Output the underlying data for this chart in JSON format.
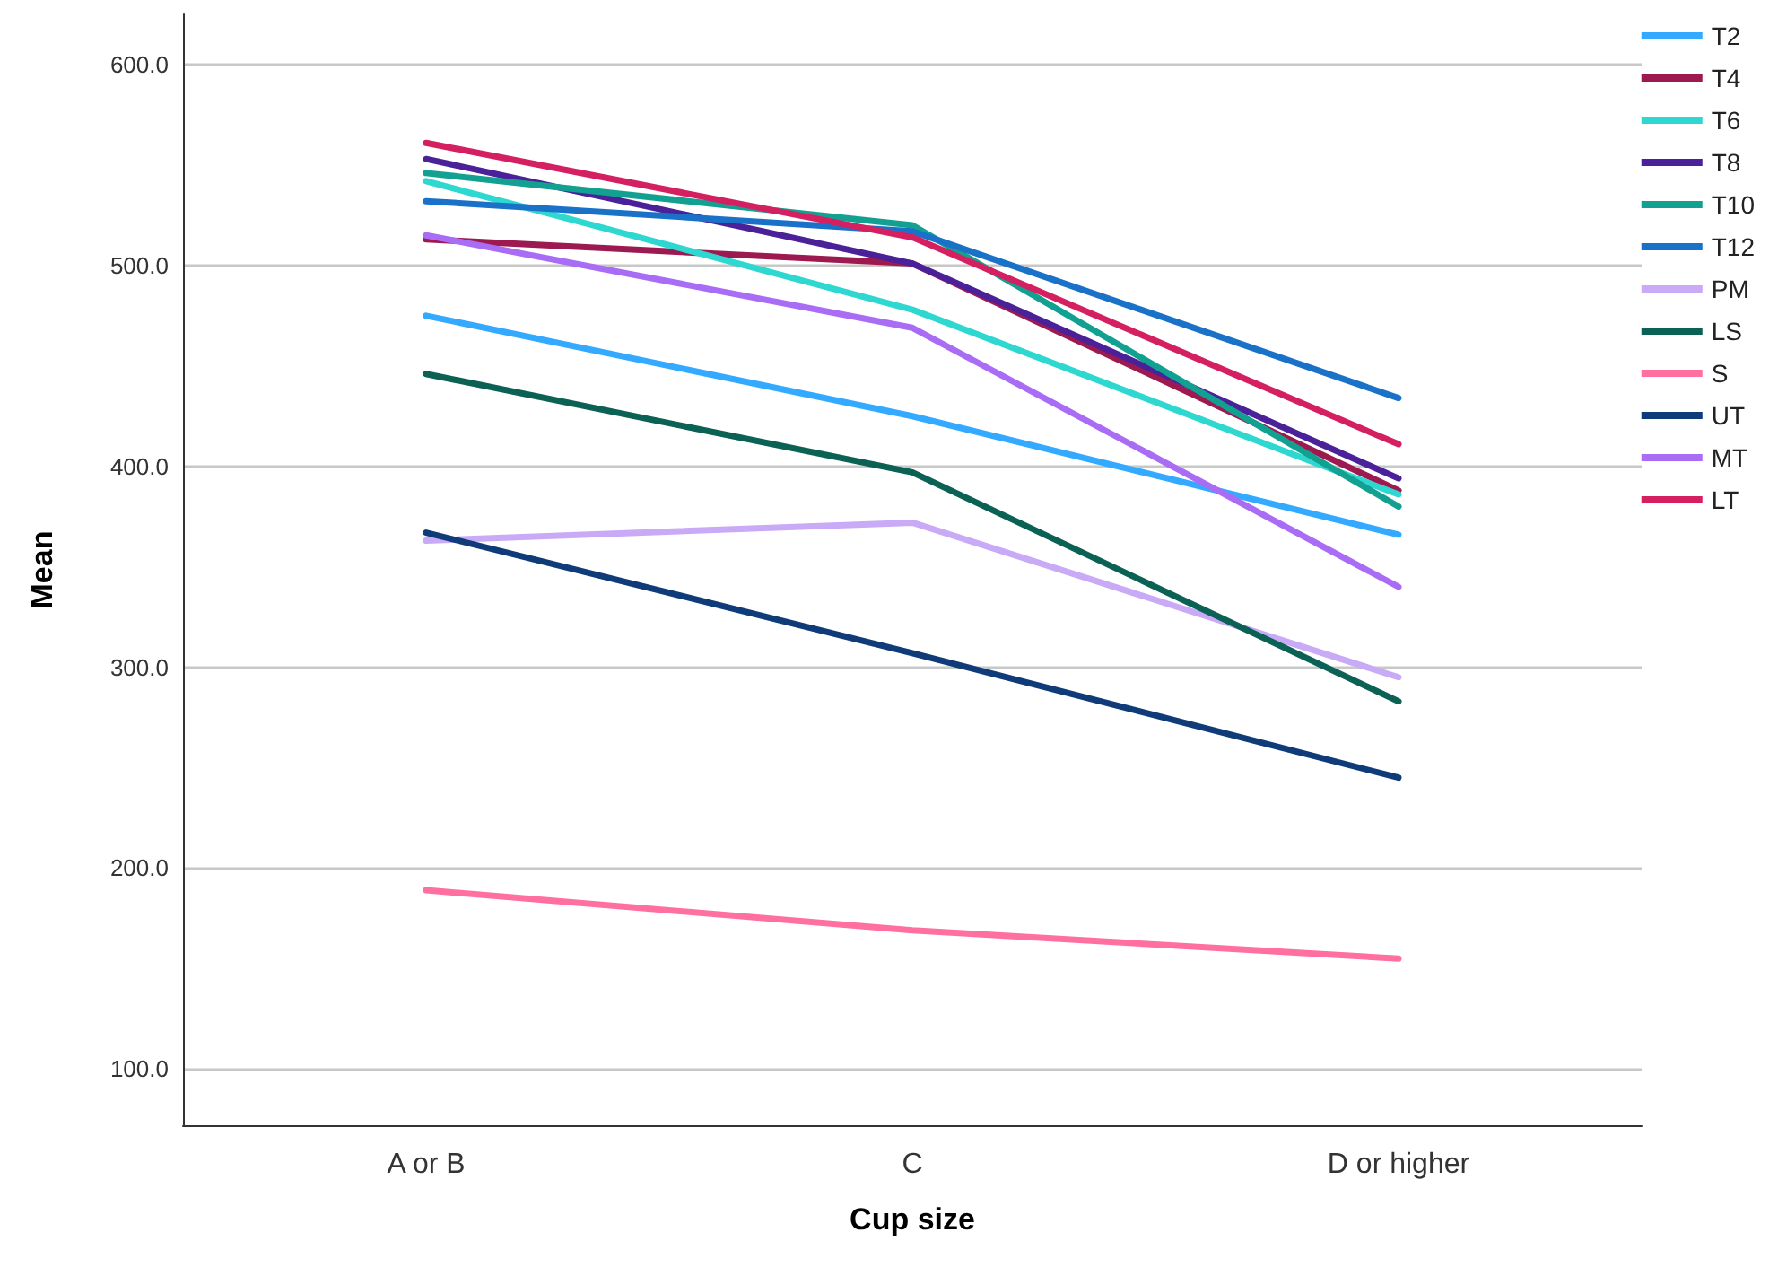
{
  "chart_data": {
    "type": "line",
    "xlabel": "Cup size",
    "ylabel": "Mean",
    "categories": [
      "A or B",
      "C",
      "D or higher"
    ],
    "series": [
      {
        "name": "T2",
        "color": "#33aaff",
        "values": [
          475,
          425,
          366
        ]
      },
      {
        "name": "T4",
        "color": "#9c1a4f",
        "values": [
          513,
          501,
          388
        ]
      },
      {
        "name": "T6",
        "color": "#2ed8d0",
        "values": [
          542,
          478,
          386
        ]
      },
      {
        "name": "T8",
        "color": "#4b2199",
        "values": [
          553,
          501,
          394
        ]
      },
      {
        "name": "T10",
        "color": "#12a090",
        "values": [
          546,
          520,
          380
        ]
      },
      {
        "name": "T12",
        "color": "#1a72c8",
        "values": [
          532,
          517,
          434
        ]
      },
      {
        "name": "PM",
        "color": "#c9aaf7",
        "values": [
          363,
          372,
          295
        ]
      },
      {
        "name": "LS",
        "color": "#0a6154",
        "values": [
          446,
          397,
          283
        ]
      },
      {
        "name": "S",
        "color": "#ff6fa0",
        "values": [
          189,
          169,
          155
        ]
      },
      {
        "name": "UT",
        "color": "#0f3c78",
        "values": [
          367,
          307,
          245
        ]
      },
      {
        "name": "MT",
        "color": "#a96cf4",
        "values": [
          515,
          469,
          340
        ]
      },
      {
        "name": "LT",
        "color": "#d42060",
        "values": [
          561,
          514,
          411
        ]
      }
    ],
    "ylim": [
      72,
      625
    ],
    "yticks": [
      {
        "value": 100,
        "label": "100.0"
      },
      {
        "value": 200,
        "label": "200.0"
      },
      {
        "value": 300,
        "label": "300.0"
      },
      {
        "value": 400,
        "label": "400.0"
      },
      {
        "value": 500,
        "label": "500.0"
      },
      {
        "value": 600,
        "label": "600.0"
      }
    ],
    "grid": "y",
    "legend": "top right",
    "marker": "none",
    "line_style": "solid"
  }
}
